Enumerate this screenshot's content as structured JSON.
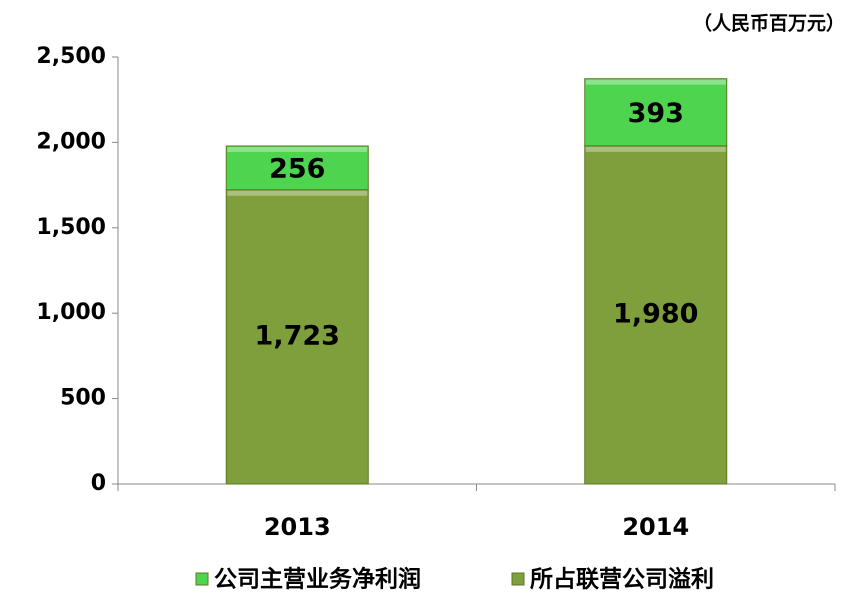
{
  "chart_data": {
    "type": "stacked_bar",
    "unit_label": "（人民币百万元）",
    "categories": [
      "2013",
      "2014"
    ],
    "series": [
      {
        "name": "公司主营业务净利润",
        "color": "#4fd44f",
        "values": [
          256,
          393
        ]
      },
      {
        "name": "所占联营公司溢利",
        "color": "#7f9f3c",
        "values": [
          1723,
          1980
        ],
        "value_labels": [
          "1,723",
          "1,980"
        ]
      }
    ],
    "ylim": [
      0,
      2500
    ],
    "yticks": [
      0,
      500,
      {
        "value": 1000,
        "label": "1,000"
      },
      {
        "value": 1500,
        "label": "1,500"
      },
      {
        "value": 2000,
        "label": "2,000"
      },
      {
        "value": 2500,
        "label": "2,500"
      }
    ],
    "grid": false
  }
}
